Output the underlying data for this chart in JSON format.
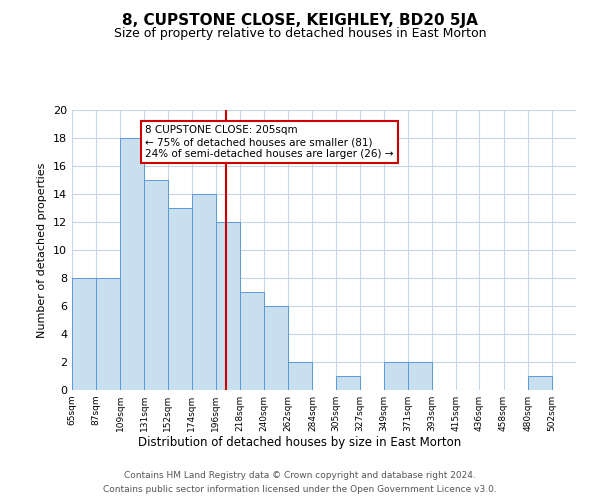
{
  "title": "8, CUPSTONE CLOSE, KEIGHLEY, BD20 5JA",
  "subtitle": "Size of property relative to detached houses in East Morton",
  "xlabel": "Distribution of detached houses by size in East Morton",
  "ylabel": "Number of detached properties",
  "bar_left_edges": [
    65,
    87,
    109,
    131,
    152,
    174,
    196,
    218,
    240,
    262,
    284,
    305,
    327,
    349,
    371,
    393,
    415,
    436,
    458,
    480
  ],
  "bar_widths": [
    22,
    22,
    22,
    21,
    22,
    22,
    22,
    22,
    22,
    22,
    21,
    22,
    22,
    22,
    22,
    22,
    21,
    22,
    22,
    22
  ],
  "bar_heights": [
    8,
    8,
    18,
    15,
    13,
    14,
    12,
    7,
    6,
    2,
    0,
    1,
    0,
    2,
    2,
    0,
    0,
    0,
    0,
    1
  ],
  "tick_labels": [
    "65sqm",
    "87sqm",
    "109sqm",
    "131sqm",
    "152sqm",
    "174sqm",
    "196sqm",
    "218sqm",
    "240sqm",
    "262sqm",
    "284sqm",
    "305sqm",
    "327sqm",
    "349sqm",
    "371sqm",
    "393sqm",
    "415sqm",
    "436sqm",
    "458sqm",
    "480sqm",
    "502sqm"
  ],
  "tick_positions": [
    65,
    87,
    109,
    131,
    152,
    174,
    196,
    218,
    240,
    262,
    284,
    305,
    327,
    349,
    371,
    393,
    415,
    436,
    458,
    480,
    502
  ],
  "bar_color": "#c8dff0",
  "bar_edge_color": "#5b9bd5",
  "vline_x": 205,
  "vline_color": "#cc0000",
  "ylim": [
    0,
    20
  ],
  "yticks": [
    0,
    2,
    4,
    6,
    8,
    10,
    12,
    14,
    16,
    18,
    20
  ],
  "annotation_title": "8 CUPSTONE CLOSE: 205sqm",
  "annotation_line1": "← 75% of detached houses are smaller (81)",
  "annotation_line2": "24% of semi-detached houses are larger (26) →",
  "annotation_box_color": "#ffffff",
  "annotation_box_edge": "#cc0000",
  "footer_line1": "Contains HM Land Registry data © Crown copyright and database right 2024.",
  "footer_line2": "Contains public sector information licensed under the Open Government Licence v3.0.",
  "background_color": "#ffffff",
  "grid_color": "#c8d4e8"
}
